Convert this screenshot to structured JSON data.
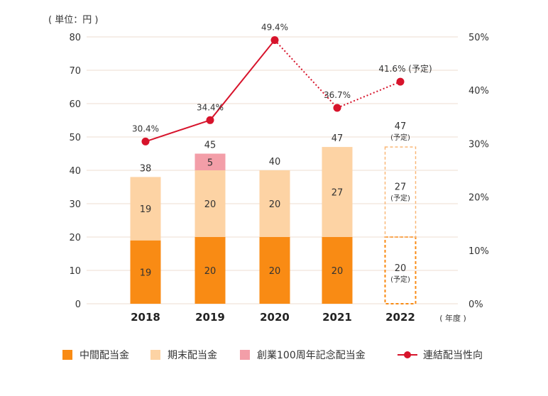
{
  "unit_label": "( 単位：円 )",
  "year_unit_label": "( 年度 )",
  "legend": {
    "interim": "中間配当金",
    "final": "期末配当金",
    "commemorative": "創業100周年記念配当金",
    "payout": "連結配当性向"
  },
  "forecast_note": "(予定)",
  "colors": {
    "interim": "#f98b14",
    "final": "#fdd3a4",
    "commemorative": "#f39ea8",
    "payout_line": "#d7132b",
    "grid": "#ecdcd2",
    "forecast_border": "#f98b14"
  },
  "chart_data": {
    "type": "bar",
    "categories": [
      "2018",
      "2019",
      "2020",
      "2021",
      "2022"
    ],
    "series": [
      {
        "name": "中間配当金",
        "values": [
          19,
          20,
          20,
          20,
          20
        ],
        "forecast": [
          false,
          false,
          false,
          false,
          true
        ]
      },
      {
        "name": "期末配当金",
        "values": [
          19,
          20,
          20,
          27,
          27
        ],
        "forecast": [
          false,
          false,
          false,
          false,
          true
        ]
      },
      {
        "name": "創業100周年記念配当金",
        "values": [
          0,
          5,
          0,
          0,
          0
        ],
        "forecast": [
          false,
          false,
          false,
          false,
          false
        ]
      }
    ],
    "totals": [
      38,
      45,
      40,
      47,
      47
    ],
    "totals_forecast": [
      false,
      false,
      false,
      false,
      true
    ],
    "line_series": {
      "name": "連結配当性向",
      "values": [
        30.4,
        34.4,
        49.4,
        36.7,
        41.6
      ],
      "labels": [
        "30.4%",
        "34.4%",
        "49.4%",
        "36.7%",
        "41.6%"
      ],
      "forecast": [
        false,
        false,
        false,
        false,
        true
      ],
      "dotted_from_index": 2
    },
    "y_left": {
      "ylim": [
        0,
        80
      ],
      "ticks": [
        "0",
        "10",
        "20",
        "30",
        "40",
        "50",
        "60",
        "70",
        "80"
      ]
    },
    "y_right": {
      "ylim": [
        0,
        50
      ],
      "ticks": [
        "0%",
        "10%",
        "20%",
        "30%",
        "40%",
        "50%"
      ]
    },
    "grid": true,
    "legend_position": "bottom"
  }
}
